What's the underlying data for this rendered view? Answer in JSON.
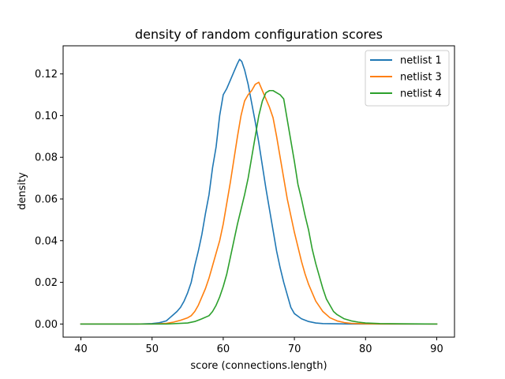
{
  "chart_data": {
    "type": "line",
    "title": "density of random configuration scores",
    "xlabel": "score (connections.length)",
    "ylabel": "density",
    "xlim": [
      37.5,
      92.5
    ],
    "ylim": [
      -0.0063,
      0.1335
    ],
    "xticks": [
      40,
      50,
      60,
      70,
      80,
      90
    ],
    "xtick_labels": [
      "40",
      "50",
      "60",
      "70",
      "80",
      "90"
    ],
    "yticks": [
      0.0,
      0.02,
      0.04,
      0.06,
      0.08,
      0.1,
      0.12
    ],
    "ytick_labels": [
      "0.00",
      "0.02",
      "0.04",
      "0.06",
      "0.08",
      "0.10",
      "0.12"
    ],
    "grid": false,
    "legend_position": "top-right",
    "series": [
      {
        "name": "netlist 1",
        "color": "#1f77b4",
        "x": [
          40,
          48,
          50,
          51,
          52,
          52.5,
          53,
          53.5,
          54,
          54.5,
          55,
          55.5,
          56,
          56.5,
          57,
          57.5,
          58,
          58.5,
          59,
          59.5,
          60,
          60.5,
          61,
          61.5,
          62,
          62.3,
          62.6,
          63,
          63.5,
          64,
          64.5,
          65,
          65.5,
          66,
          66.5,
          67,
          67.5,
          68,
          68.5,
          69,
          69.5,
          70,
          71,
          72,
          73,
          74,
          76,
          78,
          80,
          90
        ],
        "y": [
          0.0,
          0.0,
          0.0002,
          0.0006,
          0.0015,
          0.003,
          0.0045,
          0.006,
          0.008,
          0.011,
          0.015,
          0.02,
          0.028,
          0.035,
          0.043,
          0.053,
          0.062,
          0.075,
          0.085,
          0.1,
          0.11,
          0.113,
          0.117,
          0.121,
          0.125,
          0.127,
          0.126,
          0.122,
          0.115,
          0.106,
          0.097,
          0.087,
          0.076,
          0.065,
          0.055,
          0.045,
          0.035,
          0.027,
          0.02,
          0.014,
          0.008,
          0.005,
          0.0025,
          0.0012,
          0.0005,
          0.0002,
          0.0001,
          0.0,
          0.0,
          0.0
        ]
      },
      {
        "name": "netlist 3",
        "color": "#ff7f0e",
        "x": [
          40,
          50,
          52,
          53,
          54,
          55,
          55.5,
          56,
          56.5,
          57,
          57.5,
          58,
          58.5,
          59,
          59.5,
          60,
          60.5,
          61,
          61.5,
          62,
          62.5,
          63,
          63.5,
          64,
          64.5,
          65,
          65.5,
          66,
          66.5,
          67,
          67.5,
          68,
          68.5,
          69,
          69.5,
          70,
          70.5,
          71,
          71.5,
          72,
          72.5,
          73,
          74,
          75,
          76,
          77,
          78,
          80,
          82,
          90
        ],
        "y": [
          0.0,
          0.0,
          0.0003,
          0.0009,
          0.0018,
          0.003,
          0.004,
          0.006,
          0.009,
          0.013,
          0.017,
          0.022,
          0.028,
          0.034,
          0.04,
          0.048,
          0.058,
          0.068,
          0.079,
          0.09,
          0.1,
          0.107,
          0.11,
          0.112,
          0.115,
          0.116,
          0.112,
          0.108,
          0.104,
          0.099,
          0.09,
          0.08,
          0.07,
          0.06,
          0.052,
          0.044,
          0.037,
          0.03,
          0.024,
          0.019,
          0.015,
          0.011,
          0.006,
          0.003,
          0.0015,
          0.0007,
          0.0003,
          0.0001,
          0.0,
          0.0
        ]
      },
      {
        "name": "netlist 4",
        "color": "#2ca02c",
        "x": [
          40,
          52,
          55,
          56,
          57,
          58,
          58.5,
          59,
          59.5,
          60,
          60.5,
          61,
          61.5,
          62,
          62.5,
          63,
          63.5,
          64,
          64.5,
          65,
          65.5,
          66,
          66.5,
          67,
          67.5,
          68,
          68.5,
          69,
          69.5,
          70,
          70.5,
          71,
          71.5,
          72,
          72.5,
          73,
          73.5,
          74,
          74.5,
          75,
          75.5,
          76,
          77,
          78,
          79,
          80,
          82,
          85,
          90
        ],
        "y": [
          0.0,
          0.0,
          0.0005,
          0.0012,
          0.0025,
          0.004,
          0.006,
          0.009,
          0.013,
          0.018,
          0.024,
          0.032,
          0.04,
          0.048,
          0.055,
          0.062,
          0.07,
          0.08,
          0.09,
          0.1,
          0.107,
          0.111,
          0.112,
          0.112,
          0.111,
          0.11,
          0.108,
          0.098,
          0.088,
          0.078,
          0.067,
          0.06,
          0.052,
          0.045,
          0.036,
          0.029,
          0.023,
          0.017,
          0.012,
          0.009,
          0.006,
          0.0045,
          0.0025,
          0.0015,
          0.0009,
          0.0005,
          0.0002,
          0.0001,
          0.0
        ]
      }
    ]
  }
}
